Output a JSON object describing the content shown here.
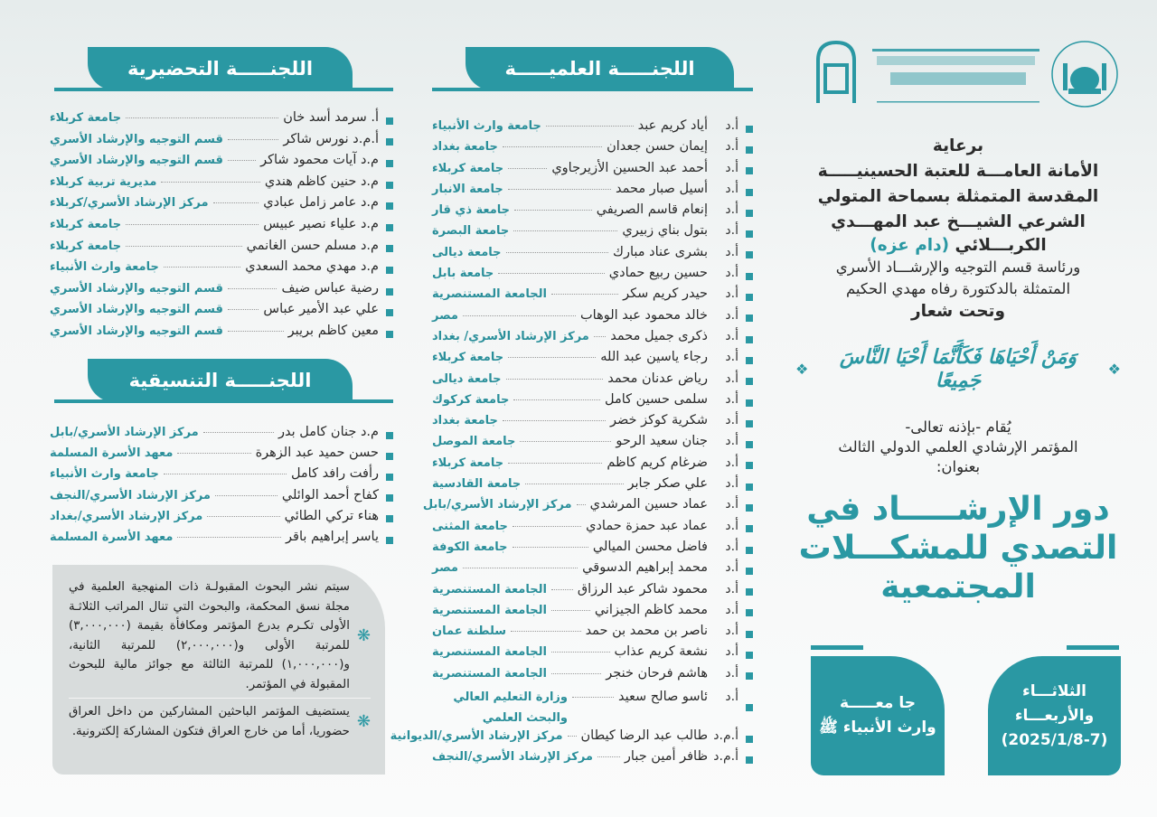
{
  "colors": {
    "accent": "#2a98a3",
    "affiliation": "#2a8f9a",
    "box_bg": "#d8dcdc"
  },
  "logos": {
    "right_emblem": "الأمانة العامة المقدسة",
    "center_calligraphy": "الأمانة العامة للعتبة الحسينية المقدسة قسم التوجيه والإرشاد الأسري",
    "left_emblem": "إرشاد"
  },
  "preparatory": {
    "title": "اللجنـــــة التحضيرية",
    "items": [
      {
        "name": "أ. سرمد أسد خان",
        "aff": "جامعة كربلاء"
      },
      {
        "name": "أ.م.د نورس شاكر",
        "aff": "قسم التوجيه والإرشاد الأسري"
      },
      {
        "name": "م.د آيات محمود شاكر",
        "aff": "قسم التوجيه والإرشاد الأسري"
      },
      {
        "name": "م.د حنين كاظم هندي",
        "aff": "مديرية تربية كربلاء"
      },
      {
        "name": "م.د عامر زامل عبادي",
        "aff": "مركز الإرشاد الأسري/كربلاء"
      },
      {
        "name": "م.د علياء نصير عبيس",
        "aff": "جامعة كربلاء"
      },
      {
        "name": "م.د مسلم حسن الغانمي",
        "aff": "جامعة كربلاء"
      },
      {
        "name": "م.د مهدي محمد السعدي",
        "aff": "جامعة وارث الأنبياء"
      },
      {
        "name": "رضية عباس ضيف",
        "aff": "قسم التوجيه والإرشاد الأسري"
      },
      {
        "name": "علي عبد الأمير عباس",
        "aff": "قسم التوجيه والإرشاد الأسري"
      },
      {
        "name": "معين كاظم بريبر",
        "aff": "قسم التوجيه والإرشاد الأسري"
      }
    ]
  },
  "coordination": {
    "title": "اللجنـــــة التنسيقية",
    "items": [
      {
        "name": "م.د جنان كامل بدر",
        "aff": "مركز الإرشاد الأسري/بابل"
      },
      {
        "name": "حسن حميد عبد الزهرة",
        "aff": "معهد الأسرة المسلمة"
      },
      {
        "name": "رأفت رافد كامل",
        "aff": "جامعة وارث الأنبياء"
      },
      {
        "name": "كفاح أحمد الوائلي",
        "aff": "مركز الإرشاد الأسري/النجف"
      },
      {
        "name": "هناء تركي الطائي",
        "aff": "مركز الإرشاد الأسري/بغداد"
      },
      {
        "name": "ياسر إبراهيم باقر",
        "aff": "معهد الأسرة المسلمة"
      }
    ]
  },
  "notes": [
    "سيتم نشر البحوث المقبولـة ذات المنهجية العلمية في مجلة نسق المحكمة، والبحوث التي تنال المراتب الثلاثـة الأولى تكـرم بدرع المؤتمر ومكافأة بقيمة (٣,٠٠٠,٠٠٠) للمرتبة الأولى و(٢,٠٠٠,٠٠٠) للمرتبة الثانية، و(١,٠٠٠,٠٠٠) للمرتبة الثالثة مع جوائز مالية للبحوث المقبولة في المؤتمر.",
    "يستضيف المؤتمر الباحثين المشاركين من داخل العراق حضوريا، أما من خارج العراق فتكون المشاركة إلكترونية."
  ],
  "scientific": {
    "title": "اللجنـــــة العلميـــــة",
    "items": [
      {
        "pre": "أ.د",
        "name": "أياد كريم عبد",
        "aff": "جامعة وارث الأنبياء"
      },
      {
        "pre": "أ.د",
        "name": "إيمان حسن جعدان",
        "aff": "جامعة بغداد"
      },
      {
        "pre": "أ.د",
        "name": "أحمد عبد الحسين الأزيرجاوي",
        "aff": "جامعة كربلاء"
      },
      {
        "pre": "أ.د",
        "name": "أسيل صبار محمد",
        "aff": "جامعة الانبار"
      },
      {
        "pre": "أ.د",
        "name": "إنعام قاسم الصريفي",
        "aff": "جامعة ذي قار"
      },
      {
        "pre": "أ.د",
        "name": "بتول بناي زبيري",
        "aff": "جامعة البصرة"
      },
      {
        "pre": "أ.د",
        "name": "بشرى عناد مبارك",
        "aff": "جامعة ديالى"
      },
      {
        "pre": "أ.د",
        "name": "حسين ربيع حمادي",
        "aff": "جامعة بابل"
      },
      {
        "pre": "أ.د",
        "name": "حيدر كريم سكر",
        "aff": "الجامعة المستنصرية"
      },
      {
        "pre": "أ.د",
        "name": "خالد محمود عبد الوهاب",
        "aff": "مصر"
      },
      {
        "pre": "أ.د",
        "name": "ذكرى جميل محمد",
        "aff": "مركز الإرشاد الأسري/ بغداد"
      },
      {
        "pre": "أ.د",
        "name": "رجاء ياسين عبد الله",
        "aff": "جامعة كربلاء"
      },
      {
        "pre": "أ.د",
        "name": "رياض عدنان محمد",
        "aff": "جامعة ديالى"
      },
      {
        "pre": "أ.د",
        "name": "سلمى حسين كامل",
        "aff": "جامعة كركوك"
      },
      {
        "pre": "أ.د",
        "name": "شكرية كوكز خضر",
        "aff": "جامعة بغداد"
      },
      {
        "pre": "أ.د",
        "name": "جنان سعيد الرحو",
        "aff": "جامعة الموصل"
      },
      {
        "pre": "أ.د",
        "name": "ضرغام كريم كاظم",
        "aff": "جامعة كربلاء"
      },
      {
        "pre": "أ.د",
        "name": "علي صكر جابر",
        "aff": "جامعة القادسية"
      },
      {
        "pre": "أ.د",
        "name": "عماد حسين المرشدي",
        "aff": "مركز الإرشاد الأسري/بابل"
      },
      {
        "pre": "أ.د",
        "name": "عماد عبد حمزة حمادي",
        "aff": "جامعة المثنى"
      },
      {
        "pre": "أ.د",
        "name": "فاضل محسن الميالي",
        "aff": "جامعة الكوفة"
      },
      {
        "pre": "أ.د",
        "name": "محمد إبراهيم الدسوقي",
        "aff": "مصر"
      },
      {
        "pre": "أ.د",
        "name": "محمود شاكر عبد الرزاق",
        "aff": "الجامعة المستنصرية"
      },
      {
        "pre": "أ.د",
        "name": "محمد كاظم الجيزاني",
        "aff": "الجامعة المستنصرية"
      },
      {
        "pre": "أ.د",
        "name": "ناصر بن محمد بن حمد",
        "aff": "سلطنة عمان"
      },
      {
        "pre": "أ.د",
        "name": "نشعة كريم عذاب",
        "aff": "الجامعة المستنصرية"
      },
      {
        "pre": "أ.د",
        "name": "هاشم فرحان خنجر",
        "aff": "الجامعة المستنصرية"
      },
      {
        "pre": "أ.د",
        "name": "ئاسو صالح سعيد",
        "aff": "وزارة التعليم العالي والبحث العلمي"
      },
      {
        "pre": "أ.م.د",
        "name": "طالب عبد الرضا كيطان",
        "aff": "مركز الإرشاد الأسري/الديوانية"
      },
      {
        "pre": "أ.م.د",
        "name": "ظافر أمين جبار",
        "aff": "مركز الإرشاد الأسري/النجف"
      }
    ]
  },
  "patronage": {
    "l1": "برعاية",
    "l2": "الأمانة العامـــة للعتبة الحسينيـــــة",
    "l3": "المقدسة المتمثلة بسماحة المتولي",
    "l4": "الشرعي الشيـــخ عبد المهـــدي",
    "l5": "الكربـــلائي",
    "l5b": "(دام عزه)",
    "l6": "ورئاسة قسم التوجيه والإرشـــاد الأسري",
    "l7": "المتمثلة بالدكتورة رفاه مهدي الحكيم",
    "l8": "وتحت شعار"
  },
  "slogan": "وَمَنْ أَحْيَاهَا فَكَأَنَّمَا أَحْيَا النَّاسَ جَمِيعًا",
  "intro": {
    "l1": "يُقام -بإذنه تعالى-",
    "l2": "المؤتمر الإرشادي العلمي الدولي الثالث",
    "l3": "بعنوان:"
  },
  "conference_title": {
    "l1": "دور الإرشـــــاد في",
    "l2": "التصدي للمشكـــلات",
    "l3": "المجتمعية"
  },
  "venue": {
    "l1": "جا معـــــة",
    "l2": "وارث الأنبياء ﷺ"
  },
  "date": {
    "l1": "الثلاثـــاء",
    "l2": "والأربعـــاء",
    "l3": "(2025/1/8-7)"
  }
}
